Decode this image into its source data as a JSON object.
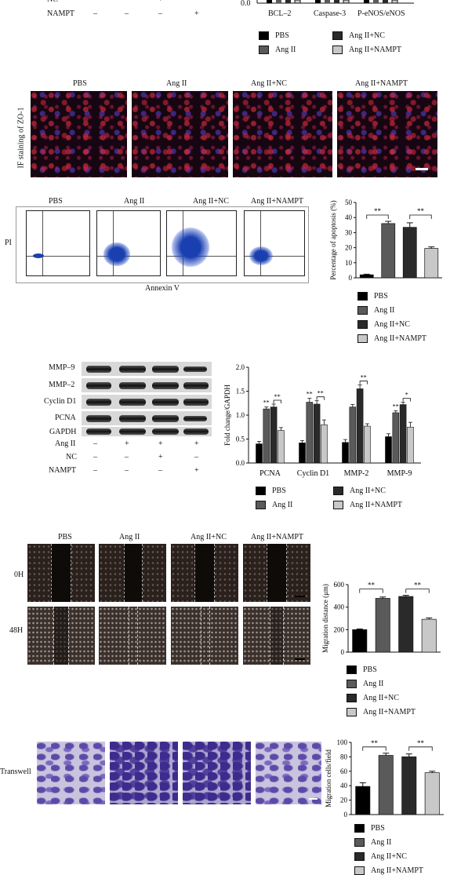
{
  "colors": {
    "pbs": "#000000",
    "ang2": "#5a5a5a",
    "ang2nc": "#2a2a2a",
    "ang2nampt": "#c8c8c8"
  },
  "top": {
    "treat_rows": [
      {
        "name": "NC",
        "vals": [
          "–",
          "–",
          "+",
          "–"
        ]
      },
      {
        "name": "NAMPT",
        "vals": [
          "–",
          "–",
          "–",
          "+"
        ]
      }
    ],
    "chart_zero": "0.0",
    "categories": [
      "BCL–2",
      "Caspase-3",
      "P-eNOS/eNOS"
    ],
    "legend": [
      "PBS",
      "Ang II",
      "Ang II+NC",
      "Ang II+NAMPT"
    ]
  },
  "if": {
    "ylabel": "IF staining of ZO-1",
    "titles": [
      "PBS",
      "Ang II",
      "Ang II+NC",
      "Ang II+NAMPT"
    ]
  },
  "flow": {
    "titles": [
      "PBS",
      "Ang II",
      "Ang II+NC",
      "Ang II+NAMPT"
    ],
    "ylabel": "PI",
    "xlabel": "Annexin V",
    "legend": [
      "PBS",
      "Ang II",
      "Ang II+NC",
      "Ang II+NAMPT"
    ]
  },
  "blot": {
    "proteins": [
      "MMP–9",
      "MMP–2",
      "Cyclin D1",
      "PCNA",
      "GAPDH"
    ],
    "treat_rows": [
      {
        "name": "Ang II",
        "vals": [
          "–",
          "+",
          "+",
          "+"
        ]
      },
      {
        "name": "NC",
        "vals": [
          "–",
          "–",
          "+",
          "–"
        ]
      },
      {
        "name": "NAMPT",
        "vals": [
          "–",
          "–",
          "–",
          "+"
        ]
      }
    ],
    "legend": [
      "PBS",
      "Ang II",
      "Ang II+NC",
      "Ang II+NAMPT"
    ]
  },
  "wound": {
    "titles": [
      "PBS",
      "Ang II",
      "Ang II+NC",
      "Ang II+NAMPT"
    ],
    "rows": [
      "0H",
      "48H"
    ],
    "legend": [
      "PBS",
      "Ang II",
      "Ang II+NC",
      "Ang II+NAMPT"
    ]
  },
  "transwell": {
    "row_label": "Transwell",
    "legend": [
      "PBS",
      "Ang II",
      "Ang II+NC",
      "Ang II+NAMPT"
    ]
  },
  "chart_data": [
    {
      "type": "bar",
      "ylabel": "Percentage of apoptosis (%)",
      "ylim": [
        0,
        50
      ],
      "yticks": [
        0,
        10,
        20,
        30,
        40,
        50
      ],
      "series": [
        {
          "name": "PBS",
          "values": [
            2
          ]
        },
        {
          "name": "Ang II",
          "values": [
            36
          ]
        },
        {
          "name": "Ang II+NC",
          "values": [
            33.5
          ]
        },
        {
          "name": "Ang II+NAMPT",
          "values": [
            19.5
          ]
        }
      ],
      "errors": [
        0.4,
        1.5,
        3,
        1
      ],
      "sig": [
        {
          "from": 0,
          "to": 1,
          "label": "**"
        },
        {
          "from": 2,
          "to": 3,
          "label": "**"
        }
      ]
    },
    {
      "type": "bar",
      "ylabel": "Fold change/GAPDH",
      "ylim": [
        0,
        2.0
      ],
      "yticks": [
        "0.0",
        "0.5",
        "1.0",
        "1.5",
        "2.0"
      ],
      "categories": [
        "PCNA",
        "Cyclin D1",
        "MMP-2",
        "MMP-9"
      ],
      "series": [
        {
          "name": "PBS",
          "values": [
            0.4,
            0.42,
            0.43,
            0.55
          ]
        },
        {
          "name": "Ang II",
          "values": [
            1.13,
            1.27,
            1.17,
            1.05
          ]
        },
        {
          "name": "Ang II+NC",
          "values": [
            1.17,
            1.23,
            1.55,
            1.22
          ]
        },
        {
          "name": "Ang II+NAMPT",
          "values": [
            0.68,
            0.8,
            0.77,
            0.75
          ]
        }
      ],
      "errors": [
        [
          0.05,
          0.05,
          0.06,
          0.06
        ],
        [
          0.04,
          0.08,
          0.05,
          0.04
        ],
        [
          0.06,
          0.07,
          0.08,
          0.05
        ],
        [
          0.06,
          0.1,
          0.05,
          0.1
        ]
      ],
      "stars": [
        [
          "**",
          "**",
          "",
          "**"
        ],
        [
          "**",
          "**",
          "**",
          "*"
        ]
      ]
    },
    {
      "type": "bar",
      "ylabel": "Migration distance (μm)",
      "ylim": [
        0,
        600
      ],
      "yticks": [
        0,
        200,
        400,
        600
      ],
      "series": [
        {
          "name": "PBS",
          "values": [
            200
          ]
        },
        {
          "name": "Ang II",
          "values": [
            478
          ]
        },
        {
          "name": "Ang II+NC",
          "values": [
            495
          ]
        },
        {
          "name": "Ang II+NAMPT",
          "values": [
            292
          ]
        }
      ],
      "errors": [
        6,
        12,
        10,
        12
      ],
      "sig": [
        {
          "from": 0,
          "to": 1,
          "label": "**"
        },
        {
          "from": 2,
          "to": 3,
          "label": "**"
        }
      ]
    },
    {
      "type": "bar",
      "ylabel": "Migration cells/field",
      "ylim": [
        0,
        100
      ],
      "yticks": [
        0,
        20,
        40,
        60,
        80,
        100
      ],
      "series": [
        {
          "name": "PBS",
          "values": [
            39
          ]
        },
        {
          "name": "Ang II",
          "values": [
            82
          ]
        },
        {
          "name": "Ang II+NC",
          "values": [
            80
          ]
        },
        {
          "name": "Ang II+NAMPT",
          "values": [
            58
          ]
        }
      ],
      "errors": [
        5,
        3,
        4,
        2
      ],
      "sig": [
        {
          "from": 0,
          "to": 1,
          "label": "**"
        },
        {
          "from": 2,
          "to": 3,
          "label": "**"
        }
      ]
    }
  ]
}
